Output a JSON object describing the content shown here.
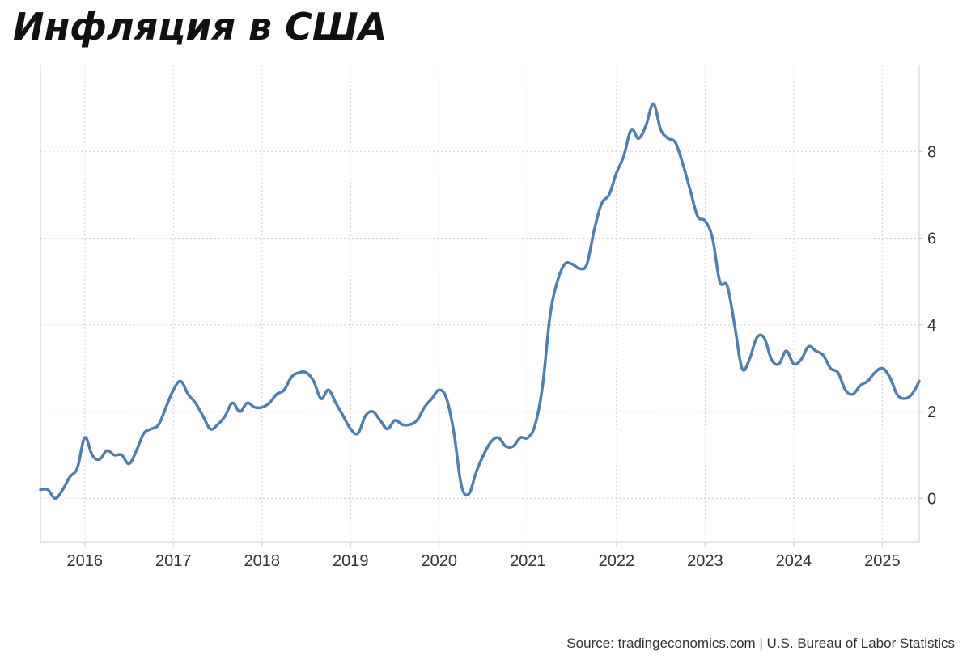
{
  "title": "Инфляция в США",
  "source": "Source: tradingeconomics.com | U.S. Bureau of Labor Statistics",
  "colors": {
    "line": "#4f7fae",
    "grid": "#cfcfcf",
    "axis": "#cccccc",
    "text": "#333333"
  },
  "chart_data": {
    "type": "line",
    "title": "Инфляция в США",
    "xlabel": "",
    "ylabel": "",
    "xlim": [
      "2015-07",
      "2025-06"
    ],
    "ylim": [
      -1,
      10
    ],
    "grid": true,
    "y_axis_position": "right",
    "x_ticks": [
      "2016",
      "2017",
      "2018",
      "2019",
      "2020",
      "2021",
      "2022",
      "2023",
      "2024",
      "2025"
    ],
    "y_ticks": [
      0,
      2,
      4,
      6,
      8
    ],
    "series": [
      {
        "name": "",
        "points": [
          [
            "2015-07",
            0.2
          ],
          [
            "2015-08",
            0.2
          ],
          [
            "2015-09",
            0.0
          ],
          [
            "2015-10",
            0.2
          ],
          [
            "2015-11",
            0.5
          ],
          [
            "2015-12",
            0.7
          ],
          [
            "2016-01",
            1.4
          ],
          [
            "2016-02",
            1.0
          ],
          [
            "2016-03",
            0.9
          ],
          [
            "2016-04",
            1.1
          ],
          [
            "2016-05",
            1.0
          ],
          [
            "2016-06",
            1.0
          ],
          [
            "2016-07",
            0.8
          ],
          [
            "2016-08",
            1.1
          ],
          [
            "2016-09",
            1.5
          ],
          [
            "2016-10",
            1.6
          ],
          [
            "2016-11",
            1.7
          ],
          [
            "2016-12",
            2.1
          ],
          [
            "2017-01",
            2.5
          ],
          [
            "2017-02",
            2.7
          ],
          [
            "2017-03",
            2.4
          ],
          [
            "2017-04",
            2.2
          ],
          [
            "2017-05",
            1.9
          ],
          [
            "2017-06",
            1.6
          ],
          [
            "2017-07",
            1.7
          ],
          [
            "2017-08",
            1.9
          ],
          [
            "2017-09",
            2.2
          ],
          [
            "2017-10",
            2.0
          ],
          [
            "2017-11",
            2.2
          ],
          [
            "2017-12",
            2.1
          ],
          [
            "2018-01",
            2.1
          ],
          [
            "2018-02",
            2.2
          ],
          [
            "2018-03",
            2.4
          ],
          [
            "2018-04",
            2.5
          ],
          [
            "2018-05",
            2.8
          ],
          [
            "2018-06",
            2.9
          ],
          [
            "2018-07",
            2.9
          ],
          [
            "2018-08",
            2.7
          ],
          [
            "2018-09",
            2.3
          ],
          [
            "2018-10",
            2.5
          ],
          [
            "2018-11",
            2.2
          ],
          [
            "2018-12",
            1.9
          ],
          [
            "2019-01",
            1.6
          ],
          [
            "2019-02",
            1.5
          ],
          [
            "2019-03",
            1.9
          ],
          [
            "2019-04",
            2.0
          ],
          [
            "2019-05",
            1.8
          ],
          [
            "2019-06",
            1.6
          ],
          [
            "2019-07",
            1.8
          ],
          [
            "2019-08",
            1.7
          ],
          [
            "2019-09",
            1.7
          ],
          [
            "2019-10",
            1.8
          ],
          [
            "2019-11",
            2.1
          ],
          [
            "2019-12",
            2.3
          ],
          [
            "2020-01",
            2.5
          ],
          [
            "2020-02",
            2.3
          ],
          [
            "2020-03",
            1.5
          ],
          [
            "2020-04",
            0.3
          ],
          [
            "2020-05",
            0.1
          ],
          [
            "2020-06",
            0.6
          ],
          [
            "2020-07",
            1.0
          ],
          [
            "2020-08",
            1.3
          ],
          [
            "2020-09",
            1.4
          ],
          [
            "2020-10",
            1.2
          ],
          [
            "2020-11",
            1.2
          ],
          [
            "2020-12",
            1.4
          ],
          [
            "2021-01",
            1.4
          ],
          [
            "2021-02",
            1.7
          ],
          [
            "2021-03",
            2.6
          ],
          [
            "2021-04",
            4.2
          ],
          [
            "2021-05",
            5.0
          ],
          [
            "2021-06",
            5.4
          ],
          [
            "2021-07",
            5.4
          ],
          [
            "2021-08",
            5.3
          ],
          [
            "2021-09",
            5.4
          ],
          [
            "2021-10",
            6.2
          ],
          [
            "2021-11",
            6.8
          ],
          [
            "2021-12",
            7.0
          ],
          [
            "2022-01",
            7.5
          ],
          [
            "2022-02",
            7.9
          ],
          [
            "2022-03",
            8.5
          ],
          [
            "2022-04",
            8.3
          ],
          [
            "2022-05",
            8.6
          ],
          [
            "2022-06",
            9.1
          ],
          [
            "2022-07",
            8.5
          ],
          [
            "2022-08",
            8.3
          ],
          [
            "2022-09",
            8.2
          ],
          [
            "2022-10",
            7.7
          ],
          [
            "2022-11",
            7.1
          ],
          [
            "2022-12",
            6.5
          ],
          [
            "2023-01",
            6.4
          ],
          [
            "2023-02",
            6.0
          ],
          [
            "2023-03",
            5.0
          ],
          [
            "2023-04",
            4.9
          ],
          [
            "2023-05",
            4.0
          ],
          [
            "2023-06",
            3.0
          ],
          [
            "2023-07",
            3.2
          ],
          [
            "2023-08",
            3.7
          ],
          [
            "2023-09",
            3.7
          ],
          [
            "2023-10",
            3.2
          ],
          [
            "2023-11",
            3.1
          ],
          [
            "2023-12",
            3.4
          ],
          [
            "2024-01",
            3.1
          ],
          [
            "2024-02",
            3.2
          ],
          [
            "2024-03",
            3.5
          ],
          [
            "2024-04",
            3.4
          ],
          [
            "2024-05",
            3.3
          ],
          [
            "2024-06",
            3.0
          ],
          [
            "2024-07",
            2.9
          ],
          [
            "2024-08",
            2.5
          ],
          [
            "2024-09",
            2.4
          ],
          [
            "2024-10",
            2.6
          ],
          [
            "2024-11",
            2.7
          ],
          [
            "2024-12",
            2.9
          ],
          [
            "2025-01",
            3.0
          ],
          [
            "2025-02",
            2.8
          ],
          [
            "2025-03",
            2.4
          ],
          [
            "2025-04",
            2.3
          ],
          [
            "2025-05",
            2.4
          ],
          [
            "2025-06",
            2.7
          ]
        ]
      }
    ]
  }
}
